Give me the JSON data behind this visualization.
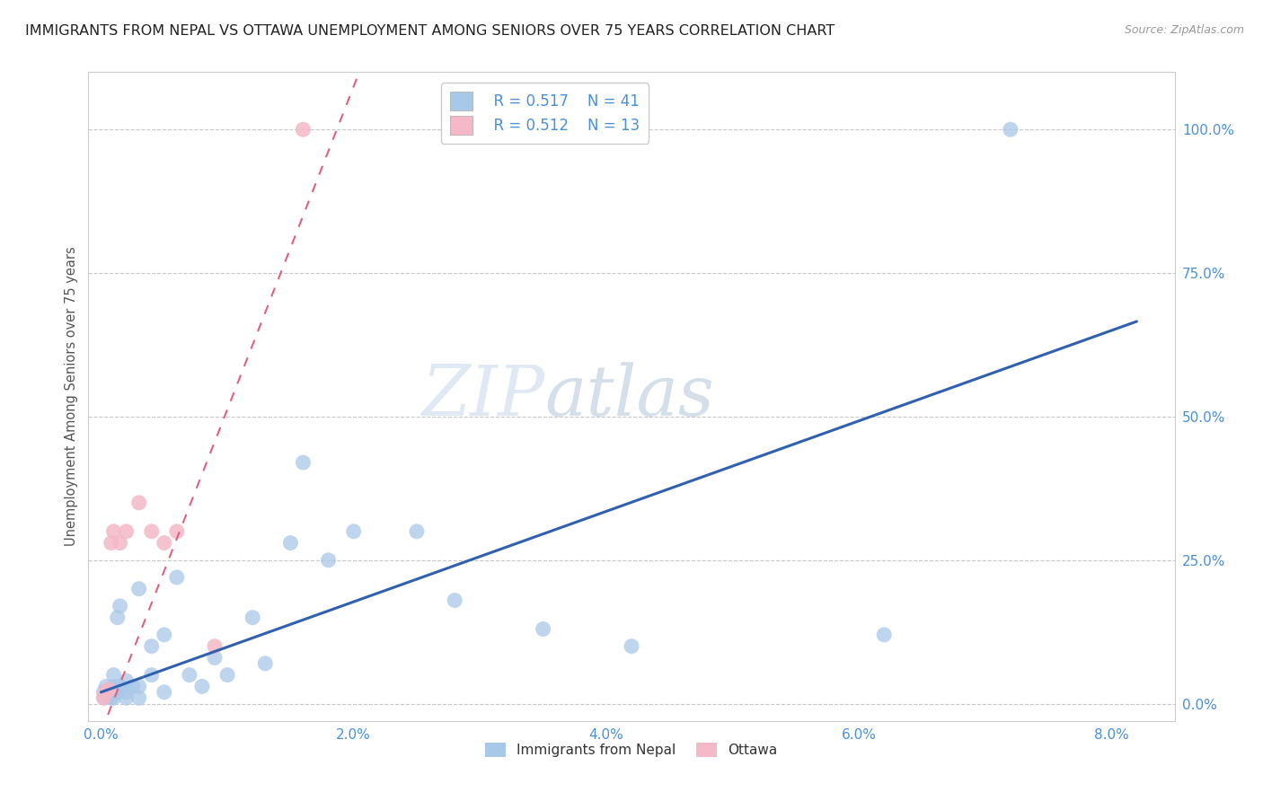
{
  "title": "IMMIGRANTS FROM NEPAL VS OTTAWA UNEMPLOYMENT AMONG SENIORS OVER 75 YEARS CORRELATION CHART",
  "source": "Source: ZipAtlas.com",
  "ylabel": "Unemployment Among Seniors over 75 years",
  "xlim": [
    -0.001,
    0.085
  ],
  "ylim": [
    -0.03,
    1.1
  ],
  "xticks": [
    0.0,
    0.02,
    0.04,
    0.06,
    0.08
  ],
  "xticklabels": [
    "0.0%",
    "2.0%",
    "4.0%",
    "6.0%",
    "8.0%"
  ],
  "yticks": [
    0.0,
    0.25,
    0.5,
    0.75,
    1.0
  ],
  "yticklabels": [
    "0.0%",
    "25.0%",
    "50.0%",
    "75.0%",
    "100.0%"
  ],
  "legend_r1": "R = 0.517",
  "legend_n1": "N = 41",
  "legend_r2": "R = 0.512",
  "legend_n2": "N = 13",
  "legend_label1": "Immigrants from Nepal",
  "legend_label2": "Ottawa",
  "watermark_zip": "ZIP",
  "watermark_atlas": "atlas",
  "blue_color": "#a8c8e8",
  "pink_color": "#f4b8c8",
  "blue_line_color": "#3060b0",
  "pink_line_color": "#e06080",
  "tick_color": "#4a90d9",
  "grid_color": "#c8c8c8",
  "nepal_x": [
    0.0002,
    0.0003,
    0.0004,
    0.0005,
    0.0006,
    0.0008,
    0.001,
    0.001,
    0.001,
    0.0012,
    0.0013,
    0.0015,
    0.0015,
    0.002,
    0.002,
    0.002,
    0.0025,
    0.003,
    0.003,
    0.003,
    0.004,
    0.004,
    0.005,
    0.005,
    0.006,
    0.007,
    0.008,
    0.009,
    0.01,
    0.012,
    0.013,
    0.015,
    0.016,
    0.018,
    0.02,
    0.025,
    0.028,
    0.035,
    0.042,
    0.062,
    0.072
  ],
  "nepal_y": [
    0.02,
    0.01,
    0.03,
    0.02,
    0.015,
    0.01,
    0.05,
    0.03,
    0.01,
    0.02,
    0.15,
    0.17,
    0.03,
    0.04,
    0.01,
    0.02,
    0.03,
    0.2,
    0.03,
    0.01,
    0.05,
    0.1,
    0.02,
    0.12,
    0.22,
    0.05,
    0.03,
    0.08,
    0.05,
    0.15,
    0.07,
    0.28,
    0.42,
    0.25,
    0.3,
    0.3,
    0.18,
    0.13,
    0.1,
    0.12,
    1.0
  ],
  "ottawa_x": [
    0.0002,
    0.0004,
    0.0006,
    0.0008,
    0.001,
    0.0015,
    0.002,
    0.003,
    0.004,
    0.005,
    0.006,
    0.009,
    0.016
  ],
  "ottawa_y": [
    0.01,
    0.02,
    0.025,
    0.28,
    0.3,
    0.28,
    0.3,
    0.35,
    0.3,
    0.28,
    0.3,
    0.1,
    1.0
  ],
  "blue_trend_x0": 0.0,
  "blue_trend_y0": 0.02,
  "blue_trend_x1": 0.08,
  "blue_trend_y1": 0.65,
  "pink_trend_x0": 0.0,
  "pink_trend_y0": -0.05,
  "pink_trend_x1": 0.016,
  "pink_trend_y1": 0.85
}
